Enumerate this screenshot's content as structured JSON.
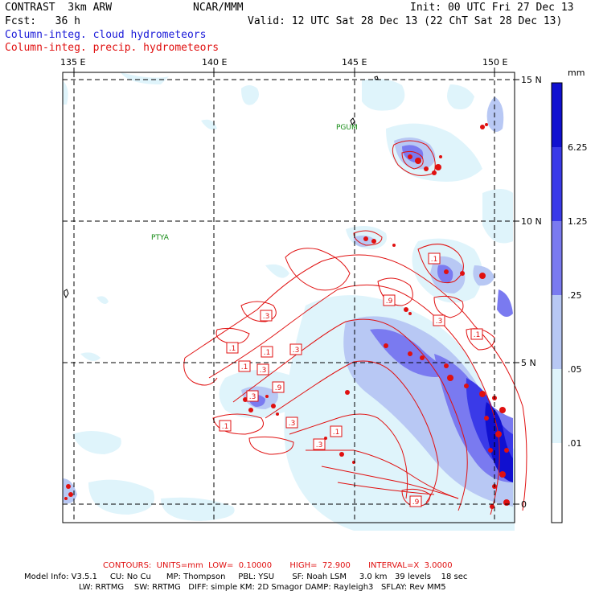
{
  "header": {
    "model": "CONTRAST  3km ARW",
    "org": "NCAR/MMM",
    "init": "Init: 00 UTC Fri 27 Dec 13",
    "fcst": "Fcst:   36 h",
    "valid": "Valid: 12 UTC Sat 28 Dec 13 (22 ChT Sat 28 Dec 13)",
    "field1": "Column-integ. cloud hydrometeors",
    "field2": "Column-integ. precip. hydrometeors"
  },
  "map": {
    "lon_labels": [
      "135 E",
      "140 E",
      "145 E",
      "150 E"
    ],
    "lat_labels": [
      "15 N",
      "10 N",
      "5 N",
      "0"
    ],
    "stations": [
      "PGUM",
      "PTYA"
    ],
    "contour_labels": [
      ".1",
      ".3",
      ".1",
      ".1",
      ".3",
      ".1",
      ".3",
      ".9",
      ".3",
      ".1",
      ".1",
      ".3",
      ".1",
      ".9",
      ".3",
      ".3",
      ".9"
    ]
  },
  "colorbar": {
    "units": "mm",
    "levels": [
      "6.25",
      "1.25",
      ".25",
      ".05",
      ".01"
    ],
    "colors": [
      "#1010d0",
      "#3a3ae8",
      "#7a7af0",
      "#b8c8f4",
      "#dff4fb",
      "#ffffff"
    ]
  },
  "footer": {
    "contours": "CONTOURS:  UNITS=mm  LOW=  0.10000       HIGH=  72.900       INTERVAL=X  3.0000",
    "line1": "Model Info: V3.5.1     CU: No Cu      MP: Thompson     PBL: YSU       SF: Noah LSM     3.0 km   39 levels    18 sec",
    "line2": "LW: RRTMG    SW: RRTMG   DIFF: simple KM: 2D Smagor DAMP: Rayleigh3   SFLAY: Rev MM5"
  }
}
